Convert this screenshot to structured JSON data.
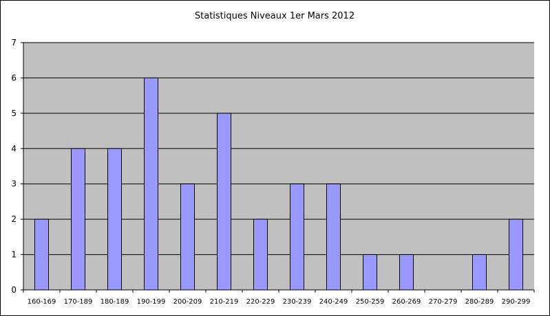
{
  "chart_data": {
    "type": "bar",
    "title": "Statistiques Niveaux 1er Mars 2012",
    "xlabel": "",
    "ylabel": "",
    "categories": [
      "160-169",
      "170-189",
      "180-189",
      "190-199",
      "200-209",
      "210-219",
      "220-229",
      "230-239",
      "240-249",
      "250-259",
      "260-269",
      "270-279",
      "280-289",
      "290-299"
    ],
    "values": [
      2,
      4,
      4,
      6,
      3,
      5,
      2,
      3,
      3,
      1,
      1,
      0,
      1,
      2
    ],
    "ylim": [
      0,
      7
    ],
    "yticks": [
      0,
      1,
      2,
      3,
      4,
      5,
      6,
      7
    ],
    "grid": true,
    "legend": "none",
    "colors": {
      "bar_fill": "#9999FF",
      "bar_stroke": "#000000",
      "plot_background": "#C0C0C0",
      "gridline": "#000000"
    }
  }
}
